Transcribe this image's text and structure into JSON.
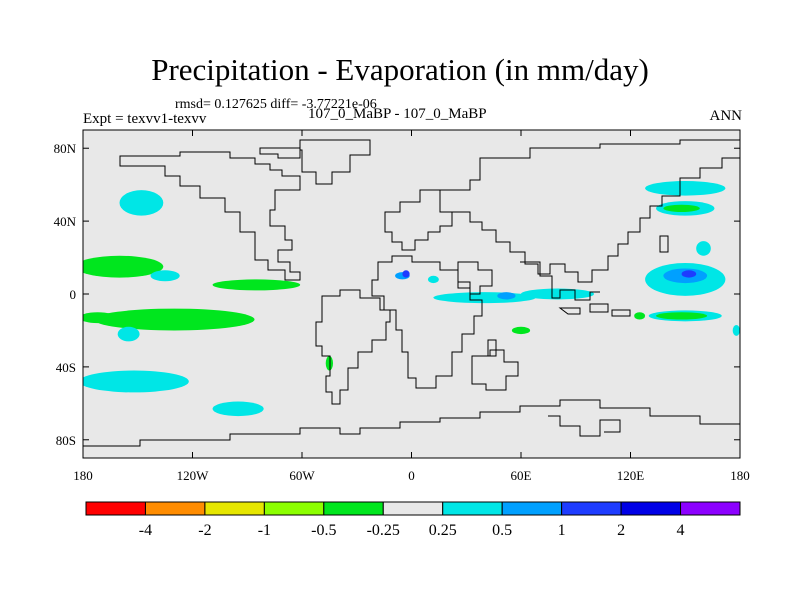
{
  "title": "Precipitation - Evaporation (in mm/day)",
  "stats_text": "rmsd= 0.127625  diff= -3.77221e-06",
  "expt_label": "Expt = texvv1-texvv",
  "case_label": "107_0_MaBP - 107_0_MaBP",
  "season": "ANN",
  "chart_data": {
    "type": "heatmap",
    "map_kind": "global lat-lon difference map",
    "xlim": [
      -180,
      180
    ],
    "ylim": [
      -90,
      90
    ],
    "x_ticks": [
      {
        "value": -180,
        "label": "180"
      },
      {
        "value": -120,
        "label": "120W"
      },
      {
        "value": -60,
        "label": "60W"
      },
      {
        "value": 0,
        "label": "0"
      },
      {
        "value": 60,
        "label": "60E"
      },
      {
        "value": 120,
        "label": "120E"
      },
      {
        "value": 180,
        "label": "180"
      }
    ],
    "y_ticks": [
      {
        "value": 80,
        "label": "80N"
      },
      {
        "value": 40,
        "label": "40N"
      },
      {
        "value": 0,
        "label": "0"
      },
      {
        "value": -40,
        "label": "40S"
      },
      {
        "value": -80,
        "label": "80S"
      }
    ],
    "background_color": "#e8e8e8",
    "colorbar": {
      "colors": [
        "#ff0000",
        "#ff8c00",
        "#e6e600",
        "#8cff00",
        "#00e61e",
        "#e8e8e8",
        "#00e6e6",
        "#00a0ff",
        "#1e3cff",
        "#0000e6",
        "#8c00ff"
      ],
      "labels": [
        "-4",
        "-2",
        "-1",
        "-0.5",
        "-0.25",
        "0.25",
        "0.5",
        "1",
        "2",
        "4"
      ]
    },
    "anomalies": [
      {
        "lon": -148,
        "lat": 50,
        "dlon": 12,
        "dlat": 7,
        "value": 0.3
      },
      {
        "lon": -160,
        "lat": 15,
        "dlon": 24,
        "dlat": 6,
        "value": -0.3
      },
      {
        "lon": -135,
        "lat": 10,
        "dlon": 8,
        "dlat": 3,
        "value": 0.3
      },
      {
        "lon": -85,
        "lat": 5,
        "dlon": 24,
        "dlat": 3,
        "value": -0.3
      },
      {
        "lon": -130,
        "lat": -14,
        "dlon": 44,
        "dlat": 6,
        "value": -0.3
      },
      {
        "lon": -172,
        "lat": -13,
        "dlon": 10,
        "dlat": 3,
        "value": -0.3
      },
      {
        "lon": -155,
        "lat": -22,
        "dlon": 6,
        "dlat": 4,
        "value": 0.3
      },
      {
        "lon": -152,
        "lat": -48,
        "dlon": 30,
        "dlat": 6,
        "value": 0.3
      },
      {
        "lon": -95,
        "lat": -63,
        "dlon": 14,
        "dlat": 4,
        "value": 0.3
      },
      {
        "lon": -45,
        "lat": -38,
        "dlon": 2,
        "dlat": 4,
        "value": -0.3
      },
      {
        "lon": -5,
        "lat": 10,
        "dlon": 4,
        "dlat": 2,
        "value": 0.7
      },
      {
        "lon": -3,
        "lat": 11,
        "dlon": 2,
        "dlat": 2,
        "value": 1.5
      },
      {
        "lon": 12,
        "lat": 8,
        "dlon": 3,
        "dlat": 2,
        "value": 0.3
      },
      {
        "lon": 40,
        "lat": -2,
        "dlon": 28,
        "dlat": 3,
        "value": 0.3
      },
      {
        "lon": 52,
        "lat": -1,
        "dlon": 5,
        "dlat": 2,
        "value": 0.7
      },
      {
        "lon": 60,
        "lat": -20,
        "dlon": 5,
        "dlat": 2,
        "value": -0.3
      },
      {
        "lon": 80,
        "lat": 0,
        "dlon": 20,
        "dlat": 3,
        "value": 0.3
      },
      {
        "lon": 150,
        "lat": 58,
        "dlon": 22,
        "dlat": 4,
        "value": 0.3
      },
      {
        "lon": 150,
        "lat": 47,
        "dlon": 16,
        "dlat": 4,
        "value": 0.3
      },
      {
        "lon": 148,
        "lat": 47,
        "dlon": 10,
        "dlat": 2,
        "value": -0.3
      },
      {
        "lon": 160,
        "lat": 25,
        "dlon": 4,
        "dlat": 4,
        "value": 0.3
      },
      {
        "lon": 150,
        "lat": 8,
        "dlon": 22,
        "dlat": 9,
        "value": 0.3
      },
      {
        "lon": 150,
        "lat": 10,
        "dlon": 12,
        "dlat": 4,
        "value": 0.7
      },
      {
        "lon": 152,
        "lat": 11,
        "dlon": 4,
        "dlat": 2,
        "value": 1.5
      },
      {
        "lon": 150,
        "lat": -12,
        "dlon": 20,
        "dlat": 3,
        "value": 0.3
      },
      {
        "lon": 148,
        "lat": -12,
        "dlon": 14,
        "dlat": 2,
        "value": -0.3
      },
      {
        "lon": 125,
        "lat": -12,
        "dlon": 3,
        "dlat": 2,
        "value": -0.3
      },
      {
        "lon": 178,
        "lat": -20,
        "dlon": 2,
        "dlat": 3,
        "value": 0.3
      }
    ]
  }
}
